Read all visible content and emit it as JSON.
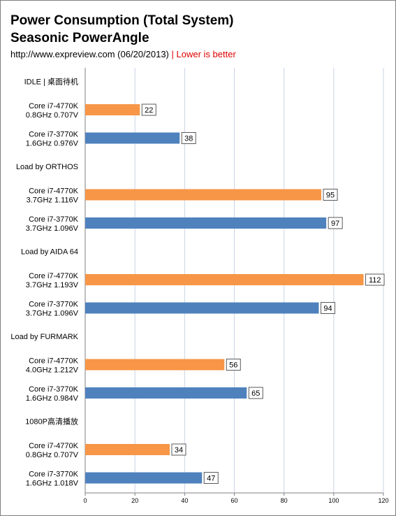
{
  "title_line1": "Power Consumption (Total System)",
  "title_line2": "Seasonic PowerAngle",
  "source": "http://www.expreview.com (06/20/2013)",
  "separator": "|",
  "note": "Lower is better",
  "colors": {
    "orange": "#F79646",
    "blue": "#4F81BD",
    "grid": "#c9d4e6",
    "axis": "#7f7f7f"
  },
  "chart_data": {
    "type": "bar",
    "orientation": "horizontal",
    "xlim": [
      0,
      120
    ],
    "xticks": [
      0,
      20,
      40,
      60,
      80,
      100,
      120
    ],
    "grid": true,
    "rows": [
      {
        "kind": "group",
        "label": "IDLE | 桌面待机"
      },
      {
        "kind": "bar",
        "line1": "Core i7-4770K",
        "line2": "0.8GHz 0.707V",
        "value": 22,
        "color": "orange"
      },
      {
        "kind": "bar",
        "line1": "Core i7-3770K",
        "line2": "1.6GHz 0.976V",
        "value": 38,
        "color": "blue"
      },
      {
        "kind": "group",
        "label": "Load by ORTHOS"
      },
      {
        "kind": "bar",
        "line1": "Core i7-4770K",
        "line2": "3.7GHz 1.116V",
        "value": 95,
        "color": "orange"
      },
      {
        "kind": "bar",
        "line1": "Core i7-3770K",
        "line2": "3.7GHz 1.096V",
        "value": 97,
        "color": "blue"
      },
      {
        "kind": "group",
        "label": "Load by AIDA 64"
      },
      {
        "kind": "bar",
        "line1": "Core i7-4770K",
        "line2": "3.7GHz 1.193V",
        "value": 112,
        "color": "orange"
      },
      {
        "kind": "bar",
        "line1": "Core i7-3770K",
        "line2": "3.7GHz 1.096V",
        "value": 94,
        "color": "blue"
      },
      {
        "kind": "group",
        "label": "Load by FURMARK"
      },
      {
        "kind": "bar",
        "line1": "Core i7-4770K",
        "line2": "4.0GHz 1.212V",
        "value": 56,
        "color": "orange"
      },
      {
        "kind": "bar",
        "line1": "Core i7-3770K",
        "line2": "1.6GHz 0.984V",
        "value": 65,
        "color": "blue"
      },
      {
        "kind": "group",
        "label": "1080P高清播放"
      },
      {
        "kind": "bar",
        "line1": "Core i7-4770K",
        "line2": "0.8GHz 0.707V",
        "value": 34,
        "color": "orange"
      },
      {
        "kind": "bar",
        "line1": "Core i7-3770K",
        "line2": "1.6GHz 1.018V",
        "value": 47,
        "color": "blue"
      }
    ]
  }
}
